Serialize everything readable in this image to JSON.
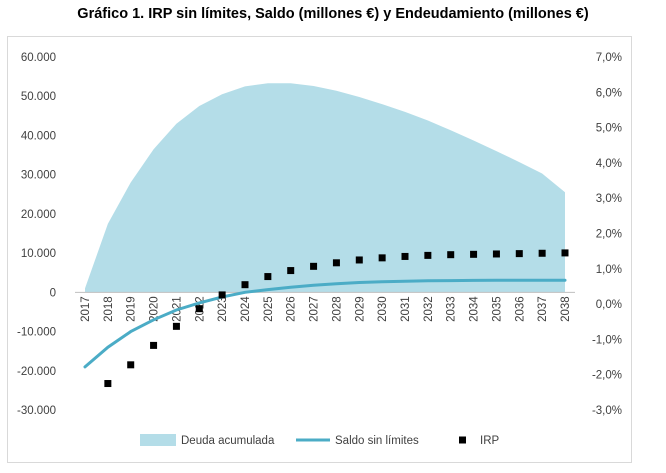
{
  "title": "Gráfico 1. IRP sin límites, Saldo (millones €) y Endeudamiento (millones €)",
  "chart_data": {
    "type": "area+line+scatter",
    "title": "Gráfico 1. IRP sin límites, Saldo (millones €) y Endeudamiento (millones €)",
    "categories": [
      "2017",
      "2018",
      "2019",
      "2020",
      "2021",
      "2022",
      "2023",
      "2024",
      "2025",
      "2026",
      "2027",
      "2028",
      "2029",
      "2030",
      "2031",
      "2032",
      "2033",
      "2034",
      "2035",
      "2036",
      "2037",
      "2038"
    ],
    "y_left": {
      "range": [
        -30000,
        60000
      ],
      "ticks": [
        60000,
        50000,
        40000,
        30000,
        20000,
        10000,
        0,
        -10000,
        -20000,
        -30000
      ],
      "tick_labels": [
        "60.000",
        "50.000",
        "40.000",
        "30.000",
        "20.000",
        "10.000",
        "0",
        "-10.000",
        "-20.000",
        "-30.000"
      ]
    },
    "y_right": {
      "range": [
        -0.03,
        0.07
      ],
      "ticks": [
        0.07,
        0.06,
        0.05,
        0.04,
        0.03,
        0.02,
        0.01,
        0.0,
        -0.01,
        -0.02,
        -0.03
      ],
      "tick_labels": [
        "7,0%",
        "6,0%",
        "5,0%",
        "4,0%",
        "3,0%",
        "2,0%",
        "1,0%",
        "0,0%",
        "-1,0%",
        "-2,0%",
        "-3,0%"
      ]
    },
    "series": [
      {
        "name": "Deuda acumulada",
        "type": "area",
        "axis": "left",
        "color": "#b4dde8",
        "values": [
          1000,
          17500,
          28000,
          36500,
          43000,
          47500,
          50500,
          52500,
          53300,
          53300,
          52600,
          51400,
          49800,
          48000,
          46000,
          43800,
          41300,
          38700,
          36000,
          33200,
          30300,
          25500
        ]
      },
      {
        "name": "Saldo sin límites",
        "type": "line",
        "axis": "left",
        "color": "#4bacc6",
        "values": [
          -19000,
          -14000,
          -10000,
          -7000,
          -4500,
          -2700,
          -1200,
          0,
          700,
          1300,
          1800,
          2200,
          2500,
          2700,
          2850,
          2950,
          3000,
          3050,
          3100,
          3100,
          3100,
          3100
        ]
      },
      {
        "name": "IRP",
        "type": "scatter",
        "axis": "right",
        "color": "#000000",
        "values": [
          null,
          -0.0225,
          -0.0172,
          -0.0117,
          -0.0063,
          -0.0013,
          0.0026,
          0.0055,
          0.0078,
          0.0095,
          0.0107,
          0.0117,
          0.0125,
          0.0131,
          0.0135,
          0.0138,
          0.014,
          0.0141,
          0.0142,
          0.0143,
          0.0144,
          0.0145
        ]
      }
    ],
    "legend": {
      "position": "bottom",
      "entries": [
        "Deuda acumulada",
        "Saldo sin límites",
        "IRP"
      ]
    },
    "grid": false
  }
}
